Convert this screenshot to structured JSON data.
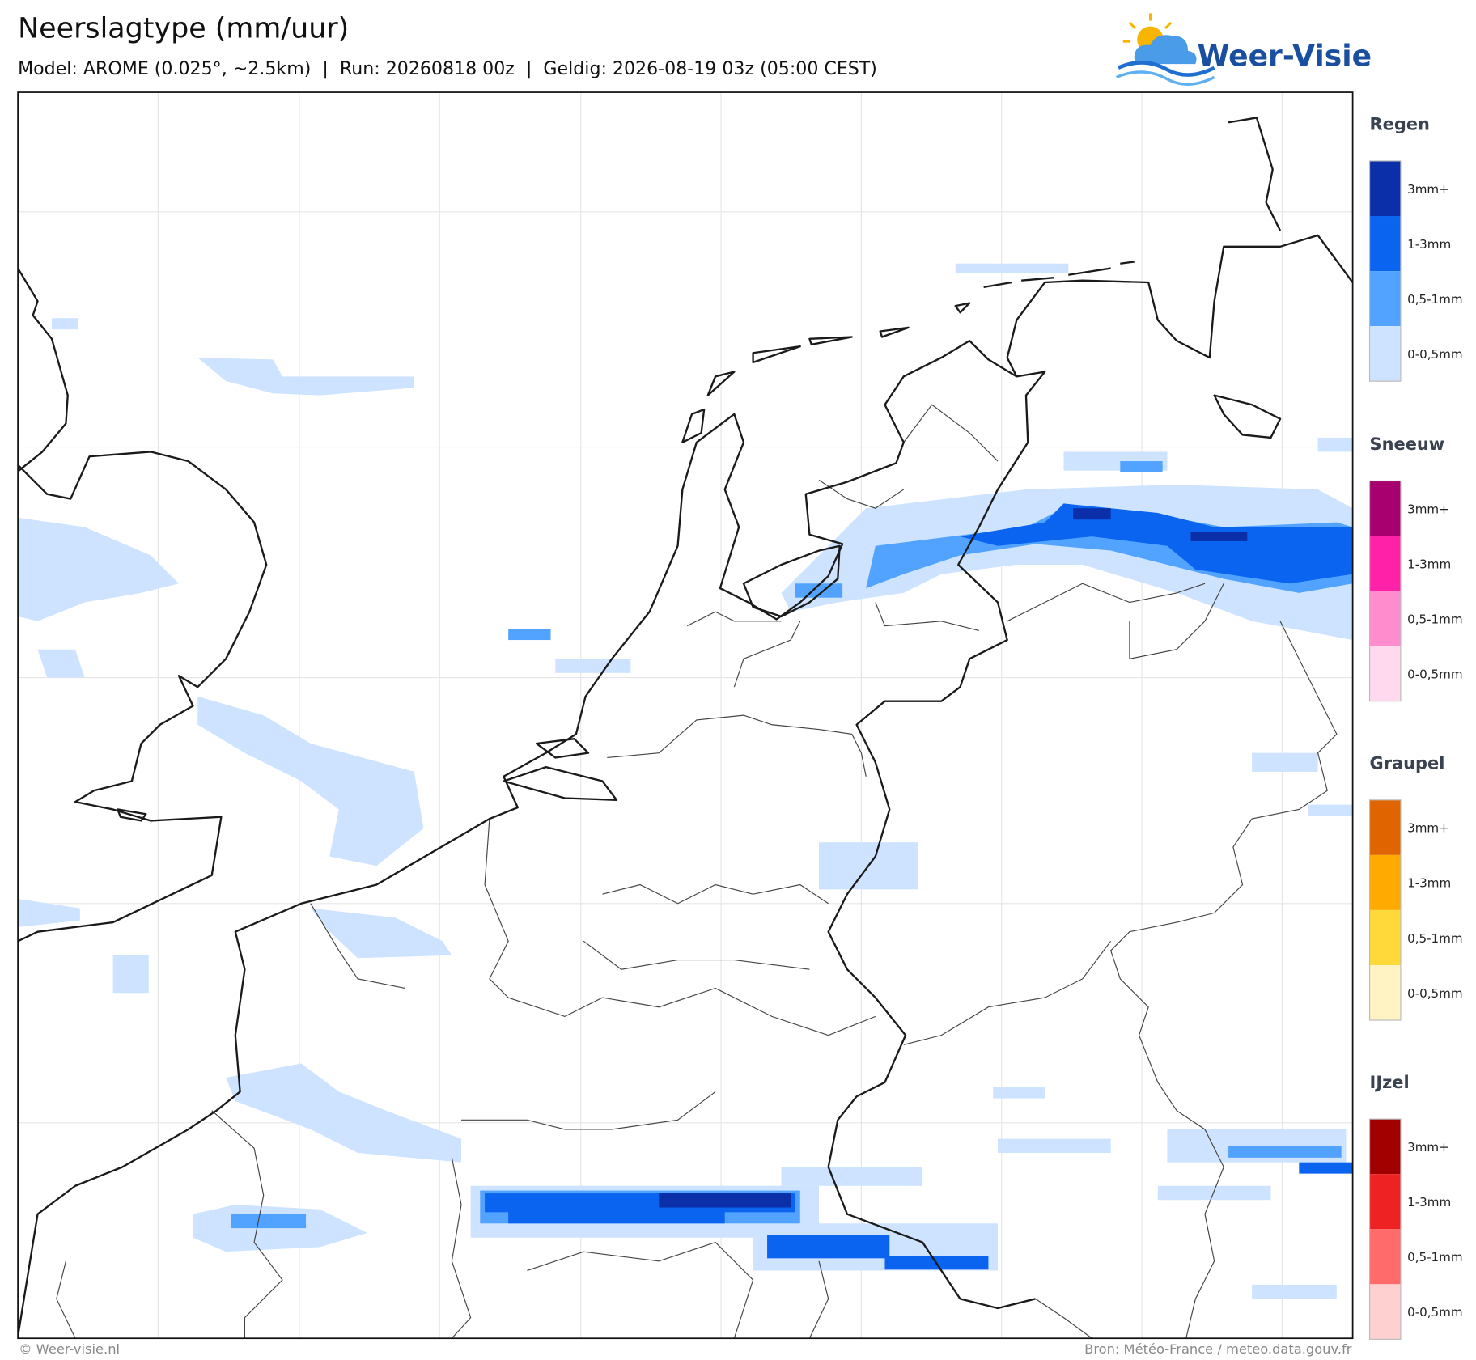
{
  "header": {
    "title": "Neerslagtype (mm/uur)",
    "subtitle": "Model: AROME (0.025°, ~2.5km)  |  Run: 20260818 00z  |  Geldig: 2026-08-19 03z (05:00 CEST)"
  },
  "logo": {
    "text": "Weer-Visie"
  },
  "legend": {
    "sections": [
      {
        "title": "Regen",
        "items": [
          {
            "label": "3mm+",
            "color": "#0a2fa8"
          },
          {
            "label": "1-3mm",
            "color": "#0a64f0"
          },
          {
            "label": "0,5-1mm",
            "color": "#52a3ff"
          },
          {
            "label": "0-0,5mm",
            "color": "#cde3ff"
          }
        ]
      },
      {
        "title": "Sneeuw",
        "items": [
          {
            "label": "3mm+",
            "color": "#a8006e"
          },
          {
            "label": "1-3mm",
            "color": "#ff22a8"
          },
          {
            "label": "0,5-1mm",
            "color": "#ff8ccd"
          },
          {
            "label": "0-0,5mm",
            "color": "#ffd9ee"
          }
        ]
      },
      {
        "title": "Graupel",
        "items": [
          {
            "label": "3mm+",
            "color": "#e06400"
          },
          {
            "label": "1-3mm",
            "color": "#ffaa00"
          },
          {
            "label": "0,5-1mm",
            "color": "#ffd83a"
          },
          {
            "label": "0-0,5mm",
            "color": "#fff3c4"
          }
        ]
      },
      {
        "title": "IJzel",
        "items": [
          {
            "label": "3mm+",
            "color": "#a00000"
          },
          {
            "label": "1-3mm",
            "color": "#ee2222"
          },
          {
            "label": "0,5-1mm",
            "color": "#ff6a6a"
          },
          {
            "label": "0-0,5mm",
            "color": "#ffd0d0"
          }
        ]
      }
    ]
  },
  "footer": {
    "left": "© Weer-visie.nl",
    "right": "Bron: Météo-France / meteo.data.gouv.fr"
  }
}
